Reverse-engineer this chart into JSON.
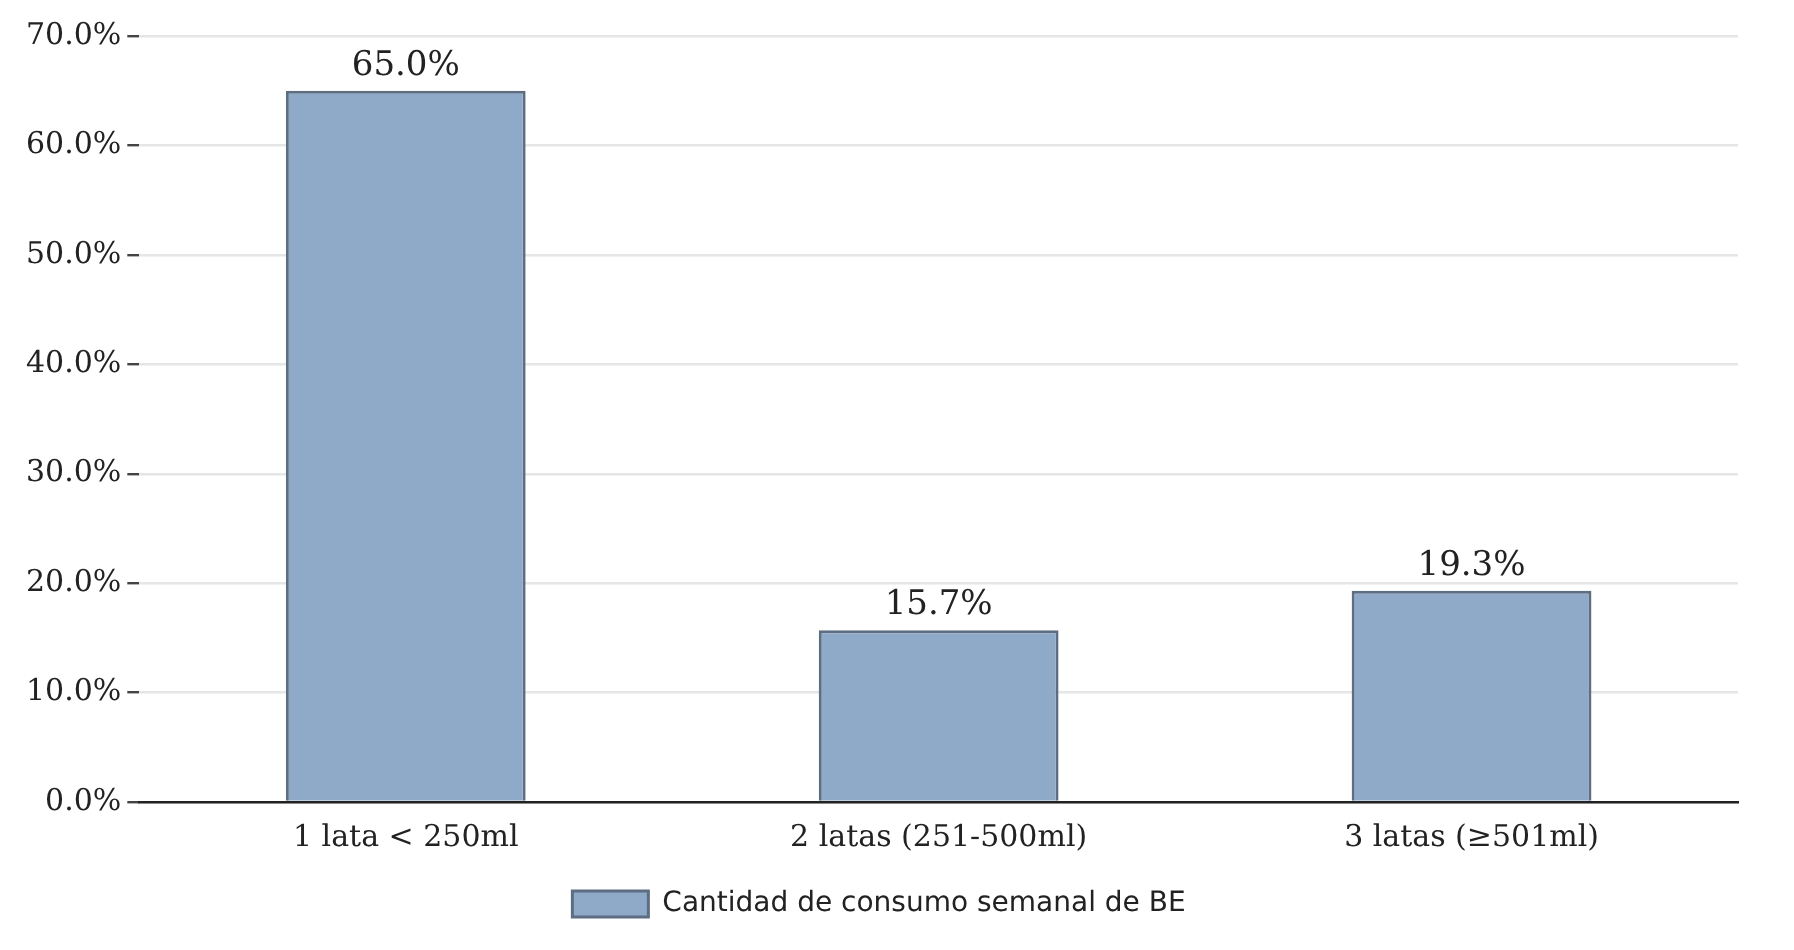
{
  "chart_data": {
    "type": "bar",
    "categories": [
      "1 lata < 250ml",
      "2 latas (251-500ml)",
      "3 latas (≥501ml)"
    ],
    "series": [
      {
        "name": "Cantidad de consumo semanal de BE",
        "color": "#8fa9c8",
        "values": [
          65.0,
          15.7,
          19.3
        ],
        "value_labels": [
          "65.0%",
          "15.7%",
          "19.3%"
        ]
      }
    ],
    "ylim": [
      0,
      70
    ],
    "yticks": [
      {
        "value": 0,
        "label": "0.0%"
      },
      {
        "value": 10,
        "label": "10.0%"
      },
      {
        "value": 20,
        "label": "20.0%"
      },
      {
        "value": 30,
        "label": "30.0%"
      },
      {
        "value": 40,
        "label": "40.0%"
      },
      {
        "value": 50,
        "label": "50.0%"
      },
      {
        "value": 60,
        "label": "60.0%"
      },
      {
        "value": 70,
        "label": "70.0%"
      }
    ],
    "grid": "y",
    "legend": "bottom"
  }
}
